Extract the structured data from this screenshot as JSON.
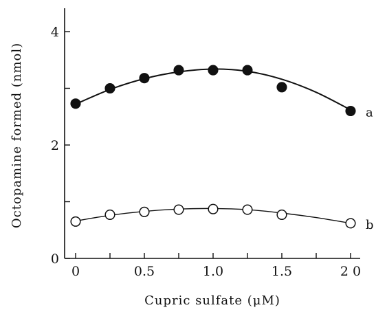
{
  "chart_data": {
    "type": "scatter",
    "xlabel": "Cupric sulfate (μM)",
    "ylabel": "Octopamine formed (nmol)",
    "xlim": [
      0,
      2
    ],
    "ylim": [
      0,
      4
    ],
    "x_ticks": [
      {
        "value": 0,
        "label": "0"
      },
      {
        "value": 0.5,
        "label": "0.5"
      },
      {
        "value": 1.0,
        "label": "1.0"
      },
      {
        "value": 1.5,
        "label": "1.5"
      },
      {
        "value": 2.0,
        "label": "2 0"
      }
    ],
    "x_minor_ticks": [
      0.25,
      0.75,
      1.25,
      1.75
    ],
    "y_ticks": [
      {
        "value": 0,
        "label": "0"
      },
      {
        "value": 2,
        "label": "2"
      },
      {
        "value": 4,
        "label": "4"
      }
    ],
    "y_minor_ticks": [
      1,
      3
    ],
    "grid": false,
    "legend": "none",
    "series": [
      {
        "name": "a",
        "marker": "filled-circle",
        "color": "#111111",
        "x": [
          0,
          0.25,
          0.5,
          0.75,
          1.0,
          1.25,
          1.5,
          2.0
        ],
        "values": [
          2.73,
          3.0,
          3.18,
          3.32,
          3.32,
          3.32,
          3.02,
          2.6
        ],
        "fit": {
          "x": [
            0,
            0.25,
            0.5,
            0.75,
            1.0,
            1.25,
            1.5,
            1.75,
            2.0
          ],
          "y": [
            2.72,
            2.98,
            3.17,
            3.29,
            3.34,
            3.3,
            3.16,
            2.93,
            2.62
          ]
        }
      },
      {
        "name": "b",
        "marker": "open-circle",
        "color": "#111111",
        "x": [
          0,
          0.25,
          0.5,
          0.75,
          1.0,
          1.25,
          1.5,
          2.0
        ],
        "values": [
          0.65,
          0.77,
          0.82,
          0.86,
          0.87,
          0.86,
          0.77,
          0.62
        ],
        "fit": {
          "x": [
            0,
            0.25,
            0.5,
            0.75,
            1.0,
            1.25,
            1.5,
            1.75,
            2.0
          ],
          "y": [
            0.66,
            0.76,
            0.83,
            0.87,
            0.88,
            0.86,
            0.8,
            0.72,
            0.62
          ]
        }
      }
    ]
  }
}
